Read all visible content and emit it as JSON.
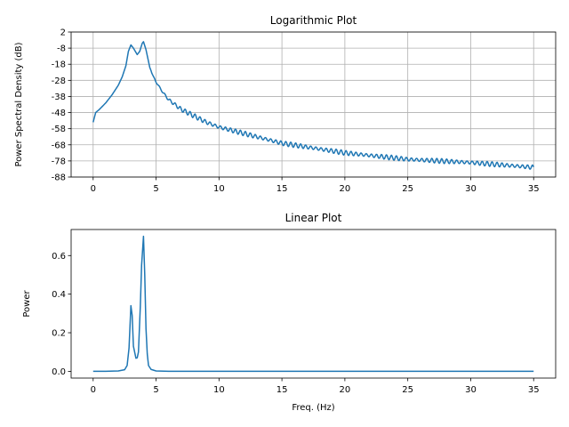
{
  "chart_data": [
    {
      "type": "line",
      "title": "Logarithmic Plot",
      "xlabel": "",
      "ylabel": "Power Spectral Density (dB)",
      "xlim": [
        -1.75,
        36.75
      ],
      "ylim": [
        -88,
        2
      ],
      "x_ticks": [
        0,
        5,
        10,
        15,
        20,
        25,
        30,
        35
      ],
      "x_tick_labels": [
        "0",
        "5",
        "10",
        "15",
        "20",
        "25",
        "30",
        "35"
      ],
      "y_ticks": [
        2,
        -8,
        -18,
        -28,
        -38,
        -48,
        -58,
        -68,
        -78,
        -88
      ],
      "y_tick_labels": [
        "2",
        "-8",
        "-18",
        "-28",
        "-38",
        "-48",
        "-58",
        "-68",
        "-78",
        "-88"
      ],
      "grid": true,
      "line_color": "#1f77b4",
      "noise_amplitude_db": 1.2,
      "series": [
        {
          "x": [
            0,
            0.2,
            0.5,
            1.0,
            1.5,
            2.0,
            2.3,
            2.6,
            2.8,
            3.0,
            3.2,
            3.5,
            3.7,
            3.9,
            4.0,
            4.2,
            4.5,
            4.8,
            5.0,
            5.5,
            6.0,
            7.0,
            8.0,
            9.0,
            10.0,
            12.0,
            15.0,
            20.0,
            25.0,
            30.0,
            35.0
          ],
          "y": [
            -54,
            -48,
            -46,
            -42,
            -37,
            -31,
            -26,
            -19,
            -10,
            -6,
            -8,
            -12,
            -10,
            -5,
            -4,
            -9,
            -20,
            -26,
            -29,
            -35,
            -40,
            -46,
            -50,
            -54,
            -57,
            -61,
            -67,
            -73,
            -77,
            -79,
            -82
          ]
        }
      ]
    },
    {
      "type": "line",
      "title": "Linear Plot",
      "xlabel": "Freq. (Hz)",
      "ylabel": "Power",
      "xlim": [
        -1.75,
        36.75
      ],
      "ylim": [
        -0.035,
        0.735
      ],
      "x_ticks": [
        0,
        5,
        10,
        15,
        20,
        25,
        30,
        35
      ],
      "x_tick_labels": [
        "0",
        "5",
        "10",
        "15",
        "20",
        "25",
        "30",
        "35"
      ],
      "y_ticks": [
        0.0,
        0.2,
        0.4,
        0.6
      ],
      "y_tick_labels": [
        "0.0",
        "0.2",
        "0.4",
        "0.6"
      ],
      "grid": false,
      "line_color": "#1f77b4",
      "series": [
        {
          "x": [
            0,
            1.0,
            2.0,
            2.5,
            2.7,
            2.85,
            3.0,
            3.1,
            3.2,
            3.4,
            3.5,
            3.6,
            3.75,
            3.85,
            4.0,
            4.1,
            4.2,
            4.3,
            4.4,
            4.6,
            5.0,
            6.0,
            10.0,
            20.0,
            35.0
          ],
          "y": [
            0.0,
            0.0,
            0.002,
            0.008,
            0.03,
            0.12,
            0.34,
            0.29,
            0.13,
            0.068,
            0.07,
            0.1,
            0.34,
            0.55,
            0.7,
            0.5,
            0.22,
            0.09,
            0.03,
            0.01,
            0.002,
            0.0,
            0.0,
            0.0,
            0.0
          ]
        }
      ]
    }
  ]
}
